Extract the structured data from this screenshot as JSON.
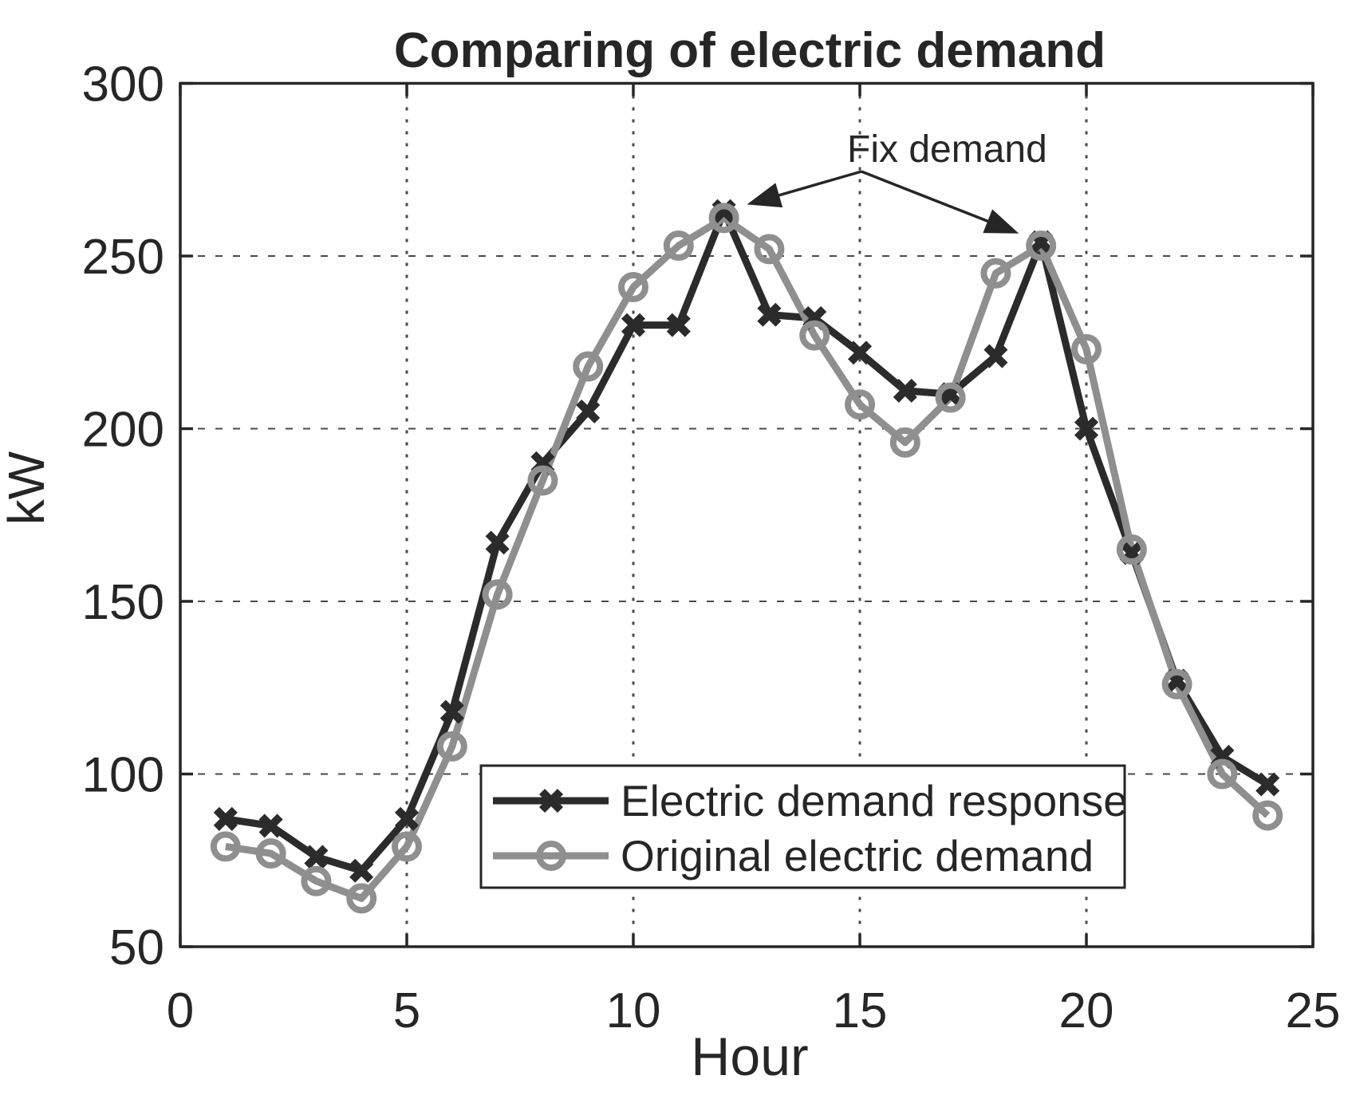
{
  "figure": {
    "title": "Comparing of electric demand",
    "xlabel": "Hour",
    "ylabel": "kW",
    "annotation_text": "Fix demand"
  },
  "colors": {
    "response_line": "#2b2b2b",
    "original_line": "#8f8f8f",
    "axis": "#262626",
    "grid": "#4a4a4a",
    "background": "#ffffff"
  },
  "legend": {
    "entries": [
      {
        "label": "Electric demand response",
        "marker": "x"
      },
      {
        "label": "Original electric demand",
        "marker": "circle"
      }
    ]
  },
  "chart_data": {
    "type": "line",
    "title": "Comparing of electric demand",
    "xlabel": "Hour",
    "ylabel": "kW",
    "xlim": [
      0,
      25
    ],
    "ylim": [
      50,
      300
    ],
    "xticks": [
      0,
      5,
      10,
      15,
      20,
      25
    ],
    "yticks": [
      50,
      100,
      150,
      200,
      250,
      300
    ],
    "grid_x": [
      5,
      10,
      15,
      20
    ],
    "grid_y": [
      100,
      150,
      200,
      250
    ],
    "grid": true,
    "legend_position": "inside-lower-center",
    "x": [
      1,
      2,
      3,
      4,
      5,
      6,
      7,
      8,
      9,
      10,
      11,
      12,
      13,
      14,
      15,
      16,
      17,
      18,
      19,
      20,
      21,
      22,
      23,
      24
    ],
    "series": [
      {
        "name": "Electric demand response",
        "color": "#2b2b2b",
        "marker": "x",
        "values": [
          87,
          85,
          76,
          72,
          87,
          118,
          167,
          190,
          205,
          230,
          230,
          263,
          233,
          232,
          222,
          211,
          210,
          221,
          254,
          200,
          164,
          127,
          105,
          97
        ]
      },
      {
        "name": "Original electric demand",
        "color": "#8f8f8f",
        "marker": "circle",
        "values": [
          79,
          77,
          69,
          64,
          79,
          108,
          152,
          185,
          218,
          241,
          253,
          261,
          252,
          227,
          207,
          196,
          209,
          245,
          253,
          223,
          165,
          126,
          100,
          88
        ]
      }
    ],
    "annotations": [
      {
        "text": "Fix demand",
        "target_hours": [
          12,
          19
        ]
      }
    ]
  }
}
